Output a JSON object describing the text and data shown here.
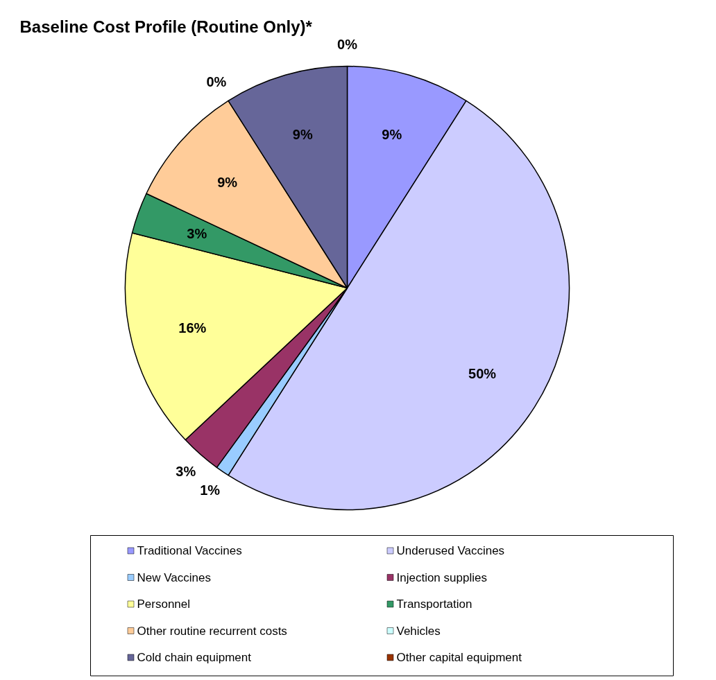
{
  "chart_data": {
    "type": "pie",
    "title": "Baseline Cost Profile (Routine Only)*",
    "categories": [
      "Traditional Vaccines",
      "Underused Vaccines",
      "New Vaccines",
      "Injection supplies",
      "Personnel",
      "Transportation",
      "Other routine recurrent costs",
      "Vehicles",
      "Cold chain equipment",
      "Other capital equipment"
    ],
    "values": [
      9,
      50,
      1,
      3,
      16,
      3,
      9,
      0,
      9,
      0
    ],
    "colors": [
      "#9999ff",
      "#ccccff",
      "#99ccff",
      "#993366",
      "#ffff99",
      "#339966",
      "#ffcc99",
      "#ccffff",
      "#666699",
      "#993300"
    ],
    "value_labels": [
      "9%",
      "50%",
      "1%",
      "3%",
      "16%",
      "3%",
      "9%",
      "0%",
      "9%",
      "0%"
    ],
    "legend": "bottom"
  }
}
